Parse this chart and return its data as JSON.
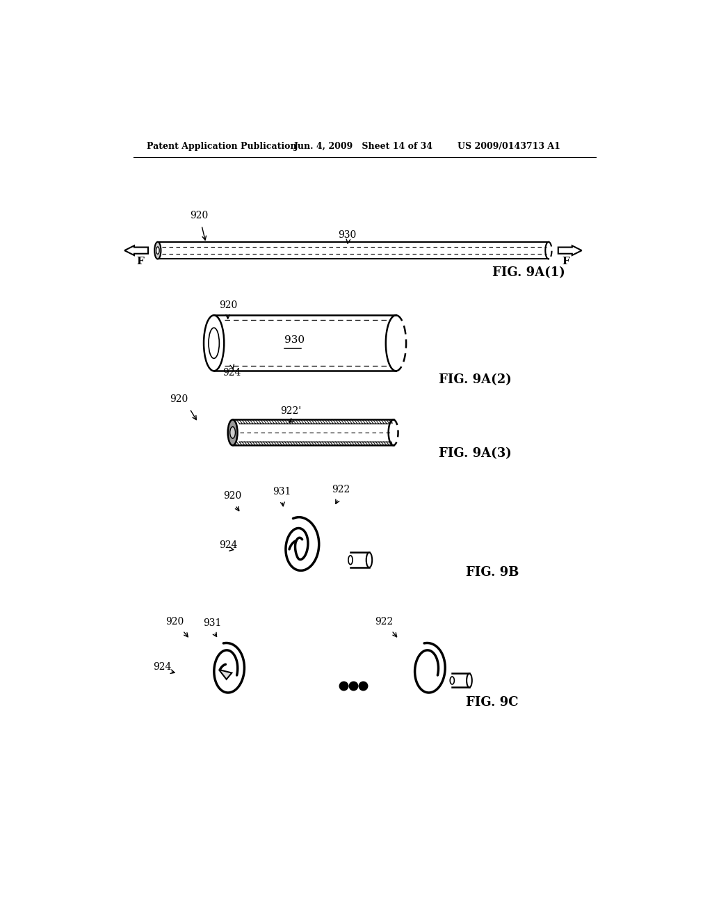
{
  "header_left": "Patent Application Publication",
  "header_mid": "Jun. 4, 2009   Sheet 14 of 34",
  "header_right": "US 2009/0143713 A1",
  "bg_color": "#ffffff",
  "line_color": "#000000"
}
